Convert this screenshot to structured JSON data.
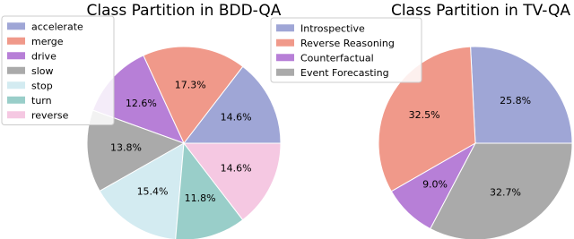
{
  "chart_data": [
    {
      "type": "pie",
      "title": "Class Partition in BDD-QA",
      "categories": [
        "accelerate",
        "merge",
        "drive",
        "slow",
        "stop",
        "turn",
        "reverse"
      ],
      "values": [
        14.6,
        17.3,
        12.6,
        13.8,
        15.4,
        11.8,
        14.6
      ],
      "value_labels": [
        "14.6%",
        "17.3%",
        "12.6%",
        "13.8%",
        "15.4%",
        "11.8%",
        "14.6%"
      ],
      "colors": [
        "#9fa6d6",
        "#f0998a",
        "#b77fd7",
        "#aaaaaa",
        "#d3ebf1",
        "#99cec9",
        "#f5c8e2"
      ],
      "legend": "upper left"
    },
    {
      "type": "pie",
      "title": "Class Partition in TV-QA",
      "categories": [
        "Introspective",
        "Reverse Reasoning",
        "Counterfactual",
        "Event Forecasting"
      ],
      "values": [
        25.8,
        32.5,
        9.0,
        32.7
      ],
      "value_labels": [
        "25.8%",
        "32.5%",
        "9.0%",
        "32.7%"
      ],
      "colors": [
        "#9fa6d6",
        "#f0998a",
        "#b77fd7",
        "#aaaaaa"
      ],
      "legend": "upper left"
    }
  ]
}
